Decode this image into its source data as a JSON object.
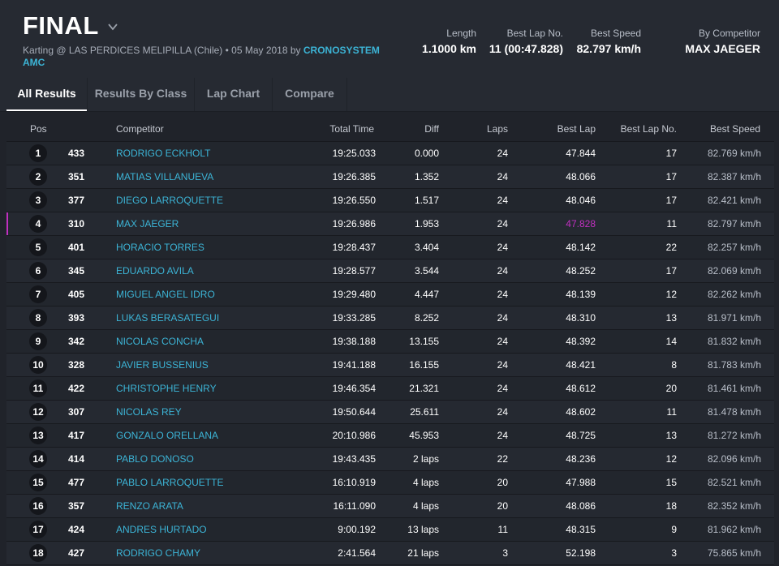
{
  "header": {
    "title": "FINAL",
    "subtitle": "Karting @ LAS PERDICES MELIPILLA (Chile) • 05 May 2018 by",
    "organizer": "CRONOSYSTEM AMC",
    "stats": [
      {
        "label": "Length",
        "value": "1.1000 km"
      },
      {
        "label": "Best Lap No.",
        "value": "11 (00:47.828)"
      },
      {
        "label": "Best Speed",
        "value": "82.797 km/h"
      },
      {
        "label": "By Competitor",
        "value": "MAX JAEGER"
      }
    ]
  },
  "tabs": [
    {
      "label": "All Results",
      "active": true
    },
    {
      "label": "Results By Class",
      "active": false
    },
    {
      "label": "Lap Chart",
      "active": false
    },
    {
      "label": "Compare",
      "active": false
    }
  ],
  "columns": {
    "pos": "Pos",
    "competitor": "Competitor",
    "total_time": "Total Time",
    "diff": "Diff",
    "laps": "Laps",
    "best_lap": "Best Lap",
    "best_lap_no": "Best Lap No.",
    "best_speed": "Best Speed"
  },
  "rows": [
    {
      "pos": "1",
      "num": "433",
      "name": "RODRIGO ECKHOLT",
      "total": "19:25.033",
      "diff": "0.000",
      "laps": "24",
      "best": "47.844",
      "bestno": "17",
      "speed": "82.769 km/h"
    },
    {
      "pos": "2",
      "num": "351",
      "name": "MATIAS VILLANUEVA",
      "total": "19:26.385",
      "diff": "1.352",
      "laps": "24",
      "best": "48.066",
      "bestno": "17",
      "speed": "82.387 km/h"
    },
    {
      "pos": "3",
      "num": "377",
      "name": "DIEGO LARROQUETTE",
      "total": "19:26.550",
      "diff": "1.517",
      "laps": "24",
      "best": "48.046",
      "bestno": "17",
      "speed": "82.421 km/h"
    },
    {
      "pos": "4",
      "num": "310",
      "name": "MAX JAEGER",
      "total": "19:26.986",
      "diff": "1.953",
      "laps": "24",
      "best": "47.828",
      "bestno": "11",
      "speed": "82.797 km/h",
      "fastest": true
    },
    {
      "pos": "5",
      "num": "401",
      "name": "HORACIO TORRES",
      "total": "19:28.437",
      "diff": "3.404",
      "laps": "24",
      "best": "48.142",
      "bestno": "22",
      "speed": "82.257 km/h"
    },
    {
      "pos": "6",
      "num": "345",
      "name": "EDUARDO AVILA",
      "total": "19:28.577",
      "diff": "3.544",
      "laps": "24",
      "best": "48.252",
      "bestno": "17",
      "speed": "82.069 km/h"
    },
    {
      "pos": "7",
      "num": "405",
      "name": "MIGUEL ANGEL IDRO",
      "total": "19:29.480",
      "diff": "4.447",
      "laps": "24",
      "best": "48.139",
      "bestno": "12",
      "speed": "82.262 km/h"
    },
    {
      "pos": "8",
      "num": "393",
      "name": "LUKAS BERASATEGUI",
      "total": "19:33.285",
      "diff": "8.252",
      "laps": "24",
      "best": "48.310",
      "bestno": "13",
      "speed": "81.971 km/h"
    },
    {
      "pos": "9",
      "num": "342",
      "name": "NICOLAS CONCHA",
      "total": "19:38.188",
      "diff": "13.155",
      "laps": "24",
      "best": "48.392",
      "bestno": "14",
      "speed": "81.832 km/h"
    },
    {
      "pos": "10",
      "num": "328",
      "name": "JAVIER BUSSENIUS",
      "total": "19:41.188",
      "diff": "16.155",
      "laps": "24",
      "best": "48.421",
      "bestno": "8",
      "speed": "81.783 km/h"
    },
    {
      "pos": "11",
      "num": "422",
      "name": "CHRISTOPHE HENRY",
      "total": "19:46.354",
      "diff": "21.321",
      "laps": "24",
      "best": "48.612",
      "bestno": "20",
      "speed": "81.461 km/h"
    },
    {
      "pos": "12",
      "num": "307",
      "name": "NICOLAS REY",
      "total": "19:50.644",
      "diff": "25.611",
      "laps": "24",
      "best": "48.602",
      "bestno": "11",
      "speed": "81.478 km/h"
    },
    {
      "pos": "13",
      "num": "417",
      "name": "GONZALO ORELLANA",
      "total": "20:10.986",
      "diff": "45.953",
      "laps": "24",
      "best": "48.725",
      "bestno": "13",
      "speed": "81.272 km/h"
    },
    {
      "pos": "14",
      "num": "414",
      "name": "PABLO DONOSO",
      "total": "19:43.435",
      "diff": "2 laps",
      "laps": "22",
      "best": "48.236",
      "bestno": "12",
      "speed": "82.096 km/h"
    },
    {
      "pos": "15",
      "num": "477",
      "name": "PABLO LARROQUETTE",
      "total": "16:10.919",
      "diff": "4 laps",
      "laps": "20",
      "best": "47.988",
      "bestno": "15",
      "speed": "82.521 km/h"
    },
    {
      "pos": "16",
      "num": "357",
      "name": "RENZO ARATA",
      "total": "16:11.090",
      "diff": "4 laps",
      "laps": "20",
      "best": "48.086",
      "bestno": "18",
      "speed": "82.352 km/h"
    },
    {
      "pos": "17",
      "num": "424",
      "name": "ANDRES HURTADO",
      "total": "9:00.192",
      "diff": "13 laps",
      "laps": "11",
      "best": "48.315",
      "bestno": "9",
      "speed": "81.962 km/h"
    },
    {
      "pos": "18",
      "num": "427",
      "name": "RODRIGO CHAMY",
      "total": "2:41.564",
      "diff": "21 laps",
      "laps": "3",
      "best": "52.198",
      "bestno": "3",
      "speed": "75.865 km/h"
    }
  ],
  "colors": {
    "accent_link": "#3cb4d6",
    "fastest_lap": "#c030c0",
    "background": "#20232a"
  }
}
